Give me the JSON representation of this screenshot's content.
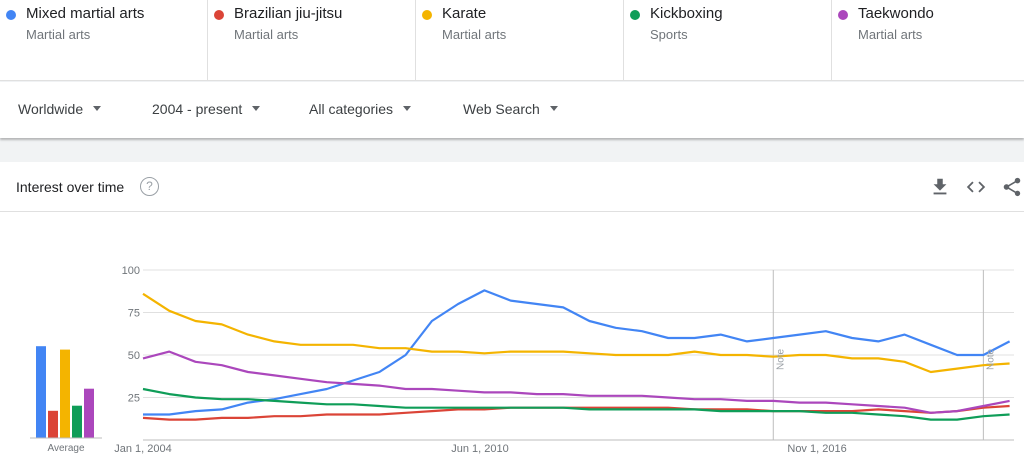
{
  "terms": [
    {
      "name": "Mixed martial arts",
      "category": "Martial arts",
      "color": "#4285f4"
    },
    {
      "name": "Brazilian jiu-jitsu",
      "category": "Martial arts",
      "color": "#db4437"
    },
    {
      "name": "Karate",
      "category": "Martial arts",
      "color": "#f4b400"
    },
    {
      "name": "Kickboxing",
      "category": "Sports",
      "color": "#0f9d58"
    },
    {
      "name": "Taekwondo",
      "category": "Martial arts",
      "color": "#ab47bc"
    }
  ],
  "filters": {
    "region": "Worldwide",
    "time": "2004 - present",
    "category": "All categories",
    "search_type": "Web Search"
  },
  "card": {
    "title": "Interest over time",
    "help": "?",
    "icons": [
      "download-icon",
      "embed-icon",
      "share-icon"
    ]
  },
  "chart_data": {
    "type": "line",
    "title": "Interest over time",
    "x_range": [
      "2004-01",
      "2020-08"
    ],
    "x_ticks": [
      "Jan 1, 2004",
      "Jun 1, 2010",
      "Nov 1, 2016"
    ],
    "y_ticks": [
      25,
      50,
      75,
      100
    ],
    "ylim": [
      0,
      100
    ],
    "grid": true,
    "note_label": "Note",
    "note_dates": [
      "2016-01",
      "2020-01"
    ],
    "average": {
      "label": "Average",
      "values": [
        54,
        16,
        52,
        19,
        29
      ]
    },
    "x": [
      "2004-01",
      "2004-07",
      "2005-01",
      "2005-07",
      "2006-01",
      "2006-07",
      "2007-01",
      "2007-07",
      "2008-01",
      "2008-07",
      "2009-01",
      "2009-07",
      "2010-01",
      "2010-07",
      "2011-01",
      "2011-07",
      "2012-01",
      "2012-07",
      "2013-01",
      "2013-07",
      "2014-01",
      "2014-07",
      "2015-01",
      "2015-07",
      "2016-01",
      "2016-07",
      "2017-01",
      "2017-07",
      "2018-01",
      "2018-07",
      "2019-01",
      "2019-07",
      "2020-01",
      "2020-07"
    ],
    "series": [
      {
        "name": "Mixed martial arts",
        "color": "#4285f4",
        "values": [
          15,
          15,
          17,
          18,
          22,
          24,
          27,
          30,
          35,
          40,
          50,
          70,
          80,
          88,
          82,
          80,
          78,
          70,
          66,
          64,
          60,
          60,
          62,
          58,
          60,
          62,
          64,
          60,
          58,
          62,
          56,
          50,
          50,
          58
        ]
      },
      {
        "name": "Brazilian jiu-jitsu",
        "color": "#db4437",
        "values": [
          13,
          12,
          12,
          13,
          13,
          14,
          14,
          15,
          15,
          15,
          16,
          17,
          18,
          18,
          19,
          19,
          19,
          19,
          19,
          19,
          19,
          18,
          18,
          18,
          17,
          17,
          17,
          17,
          18,
          17,
          16,
          17,
          19,
          20
        ]
      },
      {
        "name": "Karate",
        "color": "#f4b400",
        "values": [
          86,
          76,
          70,
          68,
          62,
          58,
          56,
          56,
          56,
          54,
          54,
          52,
          52,
          51,
          52,
          52,
          52,
          51,
          50,
          50,
          50,
          52,
          50,
          50,
          49,
          50,
          50,
          48,
          48,
          46,
          40,
          42,
          44,
          45
        ]
      },
      {
        "name": "Kickboxing",
        "color": "#0f9d58",
        "values": [
          30,
          27,
          25,
          24,
          24,
          23,
          22,
          21,
          21,
          20,
          19,
          19,
          19,
          19,
          19,
          19,
          19,
          18,
          18,
          18,
          18,
          18,
          17,
          17,
          17,
          17,
          16,
          16,
          15,
          14,
          12,
          12,
          14,
          15
        ]
      },
      {
        "name": "Taekwondo",
        "color": "#ab47bc",
        "values": [
          48,
          52,
          46,
          44,
          40,
          38,
          36,
          34,
          33,
          32,
          30,
          30,
          29,
          28,
          28,
          27,
          27,
          26,
          26,
          26,
          25,
          24,
          24,
          23,
          23,
          22,
          22,
          21,
          20,
          19,
          16,
          17,
          20,
          23
        ]
      }
    ]
  }
}
